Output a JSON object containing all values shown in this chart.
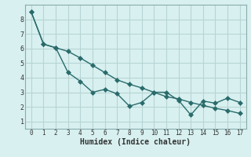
{
  "xlabel": "Humidex (Indice chaleur)",
  "background_color": "#d8f0f0",
  "grid_color": "#b8d4d4",
  "line_color": "#2a6b6b",
  "border_color": "#8aacac",
  "line1_x": [
    0,
    1,
    2,
    3,
    4,
    5,
    6,
    7,
    8,
    9,
    10,
    11,
    12,
    13,
    14,
    15,
    16,
    17
  ],
  "line1_y": [
    8.5,
    6.3,
    6.05,
    4.35,
    3.75,
    3.0,
    3.2,
    2.9,
    2.05,
    2.3,
    3.0,
    3.0,
    2.45,
    1.45,
    2.4,
    2.25,
    2.6,
    2.3
  ],
  "line2_x": [
    0,
    1,
    2,
    3,
    4,
    5,
    6,
    7,
    8,
    9,
    10,
    11,
    12,
    13,
    14,
    15,
    16,
    17
  ],
  "line2_y": [
    8.5,
    6.3,
    6.05,
    5.8,
    5.35,
    4.85,
    4.35,
    3.85,
    3.55,
    3.3,
    3.0,
    2.7,
    2.55,
    2.3,
    2.1,
    1.9,
    1.75,
    1.55
  ],
  "xlim": [
    -0.5,
    17.5
  ],
  "ylim": [
    0.5,
    9.0
  ],
  "xticks": [
    0,
    1,
    2,
    3,
    4,
    5,
    6,
    7,
    8,
    9,
    10,
    11,
    12,
    13,
    14,
    15,
    16,
    17
  ],
  "yticks": [
    1,
    2,
    3,
    4,
    5,
    6,
    7,
    8
  ],
  "markersize": 3,
  "linewidth": 1.0
}
